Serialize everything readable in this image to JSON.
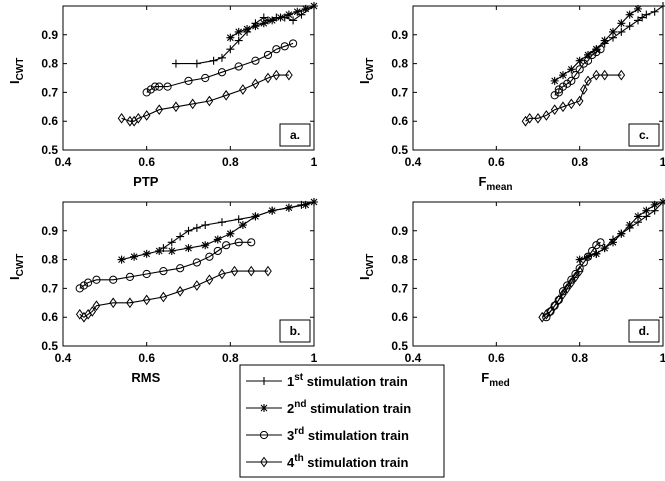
{
  "figure": {
    "legend": {
      "placement": "bottom-center",
      "entries": [
        {
          "ordinal": "1",
          "suffix": "st",
          "text": " stimulation train",
          "marker": "plus"
        },
        {
          "ordinal": "2",
          "suffix": "nd",
          "text": " stimulation train",
          "marker": "star"
        },
        {
          "ordinal": "3",
          "suffix": "rd",
          "text": " stimulation train",
          "marker": "circle"
        },
        {
          "ordinal": "4",
          "suffix": "th",
          "text": " stimulation train",
          "marker": "diamond"
        }
      ]
    }
  },
  "chart_data": [
    {
      "type": "line",
      "panel_label": "a.",
      "xlabel": "PTP",
      "xlabel_sub": "",
      "ylabel": "I",
      "ylabel_sub": "CWT",
      "xlim": [
        0.4,
        1
      ],
      "ylim": [
        0.5,
        1
      ],
      "xticks": [
        "0.4",
        "0.6",
        "0.8",
        "1"
      ],
      "yticks": [
        "0.5",
        "0.6",
        "0.7",
        "0.8",
        "0.9"
      ],
      "series": [
        {
          "marker": "plus",
          "x": [
            0.67,
            0.72,
            0.76,
            0.78,
            0.8,
            0.82,
            0.84,
            0.86,
            0.88,
            0.89,
            0.91,
            0.93,
            0.95,
            0.97,
            1.0
          ],
          "y": [
            0.8,
            0.8,
            0.81,
            0.82,
            0.85,
            0.88,
            0.91,
            0.94,
            0.96,
            0.95,
            0.96,
            0.96,
            0.95,
            0.97,
            1.0
          ]
        },
        {
          "marker": "star",
          "x": [
            0.8,
            0.82,
            0.84,
            0.86,
            0.88,
            0.9,
            0.92,
            0.94,
            0.96,
            0.98,
            1.0
          ],
          "y": [
            0.89,
            0.91,
            0.92,
            0.93,
            0.94,
            0.95,
            0.96,
            0.97,
            0.98,
            0.99,
            1.0
          ]
        },
        {
          "marker": "circle",
          "x": [
            0.6,
            0.61,
            0.62,
            0.63,
            0.65,
            0.7,
            0.74,
            0.78,
            0.82,
            0.86,
            0.89,
            0.91,
            0.93,
            0.95
          ],
          "y": [
            0.7,
            0.71,
            0.72,
            0.72,
            0.72,
            0.74,
            0.75,
            0.77,
            0.79,
            0.81,
            0.83,
            0.85,
            0.86,
            0.87
          ]
        },
        {
          "marker": "diamond",
          "x": [
            0.54,
            0.56,
            0.57,
            0.58,
            0.6,
            0.63,
            0.67,
            0.71,
            0.75,
            0.79,
            0.83,
            0.86,
            0.89,
            0.91,
            0.94
          ],
          "y": [
            0.61,
            0.6,
            0.6,
            0.61,
            0.62,
            0.64,
            0.65,
            0.66,
            0.67,
            0.69,
            0.71,
            0.73,
            0.75,
            0.76,
            0.76
          ]
        }
      ]
    },
    {
      "type": "line",
      "panel_label": "b.",
      "xlabel": "RMS",
      "xlabel_sub": "",
      "ylabel": "I",
      "ylabel_sub": "CWT",
      "xlim": [
        0.4,
        1
      ],
      "ylim": [
        0.5,
        1
      ],
      "xticks": [
        "0.4",
        "0.6",
        "0.8",
        "1"
      ],
      "yticks": [
        "0.5",
        "0.6",
        "0.7",
        "0.8",
        "0.9"
      ],
      "series": [
        {
          "marker": "plus",
          "x": [
            0.64,
            0.66,
            0.68,
            0.7,
            0.72,
            0.74,
            0.78,
            0.82,
            0.86,
            0.9,
            0.94,
            0.97,
            1.0
          ],
          "y": [
            0.84,
            0.86,
            0.88,
            0.9,
            0.91,
            0.92,
            0.93,
            0.94,
            0.95,
            0.97,
            0.98,
            0.99,
            1.0
          ]
        },
        {
          "marker": "star",
          "x": [
            0.54,
            0.57,
            0.6,
            0.63,
            0.66,
            0.7,
            0.74,
            0.77,
            0.8,
            0.83,
            0.86,
            0.9,
            0.94,
            0.98,
            1.0
          ],
          "y": [
            0.8,
            0.81,
            0.82,
            0.83,
            0.83,
            0.84,
            0.85,
            0.87,
            0.89,
            0.92,
            0.95,
            0.97,
            0.98,
            0.99,
            1.0
          ]
        },
        {
          "marker": "circle",
          "x": [
            0.44,
            0.45,
            0.46,
            0.48,
            0.52,
            0.56,
            0.6,
            0.64,
            0.68,
            0.72,
            0.75,
            0.77,
            0.79,
            0.82,
            0.85
          ],
          "y": [
            0.7,
            0.71,
            0.72,
            0.73,
            0.73,
            0.74,
            0.75,
            0.76,
            0.77,
            0.79,
            0.81,
            0.83,
            0.85,
            0.86,
            0.86
          ]
        },
        {
          "marker": "diamond",
          "x": [
            0.44,
            0.45,
            0.46,
            0.47,
            0.48,
            0.52,
            0.56,
            0.6,
            0.64,
            0.68,
            0.72,
            0.75,
            0.78,
            0.81,
            0.85,
            0.89
          ],
          "y": [
            0.61,
            0.6,
            0.61,
            0.62,
            0.64,
            0.65,
            0.65,
            0.66,
            0.67,
            0.69,
            0.71,
            0.73,
            0.75,
            0.76,
            0.76,
            0.76
          ]
        }
      ]
    },
    {
      "type": "line",
      "panel_label": "c.",
      "xlabel": "F",
      "xlabel_sub": "mean",
      "ylabel": "I",
      "ylabel_sub": "CWT",
      "xlim": [
        0.4,
        1
      ],
      "ylim": [
        0.5,
        1
      ],
      "xticks": [
        "0.4",
        "0.6",
        "0.8",
        "1"
      ],
      "yticks": [
        "0.5",
        "0.6",
        "0.7",
        "0.8",
        "0.9"
      ],
      "series": [
        {
          "marker": "plus",
          "x": [
            0.82,
            0.84,
            0.86,
            0.88,
            0.9,
            0.92,
            0.94,
            0.95,
            0.96,
            0.98,
            1.0
          ],
          "y": [
            0.83,
            0.85,
            0.87,
            0.89,
            0.91,
            0.93,
            0.95,
            0.96,
            0.97,
            0.98,
            1.0
          ]
        },
        {
          "marker": "star",
          "x": [
            0.74,
            0.76,
            0.78,
            0.8,
            0.82,
            0.84,
            0.86,
            0.88,
            0.9,
            0.92,
            0.94
          ],
          "y": [
            0.74,
            0.76,
            0.78,
            0.81,
            0.83,
            0.85,
            0.88,
            0.91,
            0.94,
            0.97,
            0.99
          ]
        },
        {
          "marker": "circle",
          "x": [
            0.74,
            0.75,
            0.75,
            0.76,
            0.77,
            0.78,
            0.79,
            0.8,
            0.81,
            0.82,
            0.83,
            0.84,
            0.85
          ],
          "y": [
            0.69,
            0.7,
            0.71,
            0.72,
            0.73,
            0.74,
            0.76,
            0.78,
            0.8,
            0.81,
            0.83,
            0.84,
            0.85
          ]
        },
        {
          "marker": "diamond",
          "x": [
            0.67,
            0.68,
            0.7,
            0.72,
            0.74,
            0.76,
            0.78,
            0.8,
            0.81,
            0.82,
            0.84,
            0.86,
            0.9
          ],
          "y": [
            0.6,
            0.61,
            0.61,
            0.62,
            0.64,
            0.65,
            0.66,
            0.67,
            0.71,
            0.74,
            0.76,
            0.76,
            0.76
          ]
        }
      ]
    },
    {
      "type": "line",
      "panel_label": "d.",
      "xlabel": "F",
      "xlabel_sub": "med",
      "ylabel": "I",
      "ylabel_sub": "CWT",
      "xlim": [
        0.4,
        1
      ],
      "ylim": [
        0.5,
        1
      ],
      "xticks": [
        "0.4",
        "0.6",
        "0.8",
        "1"
      ],
      "yticks": [
        "0.5",
        "0.6",
        "0.7",
        "0.8",
        "0.9"
      ],
      "series": [
        {
          "marker": "plus",
          "x": [
            0.84,
            0.86,
            0.88,
            0.9,
            0.92,
            0.94,
            0.96,
            0.98,
            1.0
          ],
          "y": [
            0.82,
            0.84,
            0.87,
            0.89,
            0.91,
            0.93,
            0.95,
            0.97,
            1.0
          ]
        },
        {
          "marker": "star",
          "x": [
            0.8,
            0.82,
            0.84,
            0.86,
            0.88,
            0.9,
            0.92,
            0.94,
            0.96,
            0.98,
            1.0
          ],
          "y": [
            0.8,
            0.81,
            0.82,
            0.84,
            0.86,
            0.89,
            0.92,
            0.95,
            0.97,
            0.99,
            1.0
          ]
        },
        {
          "marker": "circle",
          "x": [
            0.72,
            0.73,
            0.74,
            0.75,
            0.76,
            0.77,
            0.78,
            0.79,
            0.8,
            0.81,
            0.82,
            0.83,
            0.84,
            0.85
          ],
          "y": [
            0.6,
            0.62,
            0.64,
            0.66,
            0.69,
            0.71,
            0.73,
            0.75,
            0.77,
            0.79,
            0.81,
            0.83,
            0.85,
            0.86
          ]
        },
        {
          "marker": "diamond",
          "x": [
            0.71,
            0.72,
            0.73,
            0.74,
            0.75,
            0.76,
            0.77,
            0.78,
            0.79,
            0.8
          ],
          "y": [
            0.6,
            0.61,
            0.62,
            0.64,
            0.66,
            0.68,
            0.7,
            0.72,
            0.74,
            0.76
          ]
        }
      ]
    }
  ]
}
